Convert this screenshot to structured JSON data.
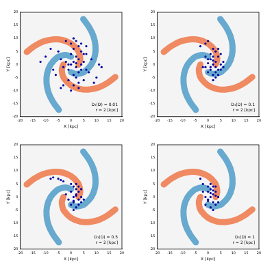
{
  "chart_data": [
    {
      "type": "scatter",
      "xlabel": "X [kpc]",
      "ylabel": "Y [kpc]",
      "xlim": [
        -20,
        20
      ],
      "ylim": [
        -20,
        20
      ],
      "xticks": [
        -20,
        -15,
        -10,
        -5,
        0,
        5,
        10,
        15,
        20
      ],
      "yticks": [
        -20,
        -15,
        -10,
        -5,
        0,
        5,
        10,
        15,
        20
      ],
      "grid": false,
      "annotations": [
        "D₁(D) = 0.01",
        "r = 2 [kpc]"
      ],
      "series": [
        {
          "type": "line",
          "color": "#ef8a62",
          "x": [
            3.0,
            3.6,
            3.4,
            2.7,
            0,
            -3.5,
            -7.2,
            -10.9,
            -14.3,
            -17.4
          ],
          "values": [
            0,
            1.8,
            3.7,
            5.4,
            8.0,
            9.4,
            9.6,
            8.8,
            7.1,
            4.8
          ]
        },
        {
          "type": "line",
          "color": "#ef8a62",
          "x": [
            -3.0,
            -3.6,
            -3.4,
            -2.7,
            0,
            3.5,
            7.2,
            10.9,
            14.3,
            17.4
          ],
          "values": [
            0,
            -1.8,
            -3.7,
            -5.4,
            -8.0,
            -9.4,
            -9.6,
            -8.8,
            -7.1,
            -4.8
          ]
        },
        {
          "type": "line",
          "color": "#67a9cf",
          "x": [
            0,
            -1.8,
            -3.7,
            -5.4,
            -8.0,
            -9.4,
            -9.6,
            -8.8,
            -7.1,
            -4.8
          ],
          "values": [
            3.0,
            3.6,
            3.4,
            2.7,
            0,
            -3.5,
            -7.2,
            -10.9,
            -14.3,
            -17.4
          ]
        },
        {
          "type": "line",
          "color": "#67a9cf",
          "x": [
            0,
            1.8,
            3.7,
            5.4,
            8.0,
            9.4,
            9.6,
            8.8,
            7.1,
            4.8
          ],
          "values": [
            -3.0,
            -3.6,
            -3.4,
            -2.7,
            0,
            3.5,
            7.2,
            10.9,
            14.3,
            17.4
          ]
        },
        {
          "type": "scatter",
          "color": "#00009f",
          "marker": "circle",
          "x": [
            0,
            1,
            2,
            3,
            4,
            -1,
            -2,
            2,
            3,
            1,
            0,
            5,
            6,
            -3,
            -4,
            4,
            2,
            1,
            -1,
            3,
            5,
            7,
            -5,
            -6,
            8,
            -8,
            10,
            12,
            -10,
            -12,
            2,
            4,
            6,
            0,
            -2,
            1,
            3,
            5,
            -3,
            2,
            -7,
            9,
            3,
            0,
            -4,
            6,
            11,
            1,
            4,
            -1
          ],
          "values": [
            0,
            1,
            -1,
            2,
            0,
            -2,
            1,
            3,
            -3,
            -4,
            4,
            1,
            -2,
            -1,
            2,
            5,
            -5,
            6,
            -6,
            7,
            4,
            -3,
            5,
            -4,
            2,
            6,
            -5,
            -1,
            3,
            1,
            9,
            8,
            7,
            8,
            9,
            -8,
            -7,
            -6,
            -8,
            0.5,
            -2,
            -7,
            -9,
            -10,
            -9,
            4,
            0,
            10,
            -2,
            0
          ]
        }
      ]
    },
    {
      "type": "scatter",
      "xlabel": "X [kpc]",
      "ylabel": "Y [kpc]",
      "xlim": [
        -20,
        20
      ],
      "ylim": [
        -20,
        20
      ],
      "xticks": [
        -20,
        -15,
        -10,
        -5,
        0,
        5,
        10,
        15,
        20
      ],
      "yticks": [
        -20,
        -15,
        -10,
        -5,
        0,
        5,
        10,
        15,
        20
      ],
      "grid": false,
      "annotations": [
        "D₁(D) = 0.1",
        "r = 2 [kpc]"
      ],
      "series": [
        {
          "type": "line",
          "color": "#ef8a62",
          "x": [
            3.0,
            3.6,
            3.4,
            2.7,
            0,
            -3.5,
            -7.2,
            -10.9,
            -14.3,
            -17.4
          ],
          "values": [
            0,
            1.8,
            3.7,
            5.4,
            8.0,
            9.4,
            9.6,
            8.8,
            7.1,
            4.8
          ]
        },
        {
          "type": "line",
          "color": "#ef8a62",
          "x": [
            -3.0,
            -3.6,
            -3.4,
            -2.7,
            0,
            3.5,
            7.2,
            10.9,
            14.3,
            17.4
          ],
          "values": [
            0,
            -1.8,
            -3.7,
            -5.4,
            -8.0,
            -9.4,
            -9.6,
            -8.8,
            -7.1,
            -4.8
          ]
        },
        {
          "type": "line",
          "color": "#67a9cf",
          "x": [
            0,
            -1.8,
            -3.7,
            -5.4,
            -8.0,
            -9.4,
            -9.6,
            -8.8,
            -7.1,
            -4.8
          ],
          "values": [
            3.0,
            3.6,
            3.4,
            2.7,
            0,
            -3.5,
            -7.2,
            -10.9,
            -14.3,
            -17.4
          ]
        },
        {
          "type": "line",
          "color": "#67a9cf",
          "x": [
            0,
            1.8,
            3.7,
            5.4,
            8.0,
            9.4,
            9.6,
            8.8,
            7.1,
            4.8
          ],
          "values": [
            -3.0,
            -3.6,
            -3.4,
            -2.7,
            0,
            3.5,
            7.2,
            10.9,
            14.3,
            17.4
          ]
        },
        {
          "type": "scatter",
          "color": "#00009f",
          "marker": "circle",
          "x": [
            2,
            3,
            1,
            4,
            0,
            2,
            3,
            5,
            1,
            -1,
            2,
            4,
            0,
            3,
            5,
            6,
            1,
            2,
            -1,
            3,
            4,
            2,
            0,
            1,
            5,
            3,
            -2,
            6,
            2,
            4,
            -1,
            0,
            -3
          ],
          "values": [
            0,
            1,
            -1,
            -2,
            2,
            3,
            -3,
            0,
            4,
            -1,
            -4,
            3,
            -3,
            5,
            -2,
            1,
            2,
            6,
            3,
            -5,
            -4,
            1.5,
            0.5,
            -2,
            4,
            -1,
            -1,
            -1,
            -6,
            6,
            8,
            9,
            7
          ]
        }
      ]
    },
    {
      "type": "scatter",
      "xlabel": "X [kpc]",
      "ylabel": "Y [kpc]",
      "xlim": [
        -20,
        20
      ],
      "ylim": [
        -20,
        20
      ],
      "xticks": [
        -20,
        -15,
        -10,
        -5,
        0,
        5,
        10,
        15,
        20
      ],
      "yticks": [
        -20,
        -15,
        -10,
        -5,
        0,
        5,
        10,
        15,
        20
      ],
      "grid": false,
      "annotations": [
        "D₁(D) = 0.5",
        "r = 2 [kpc]"
      ],
      "series": [
        {
          "type": "line",
          "color": "#ef8a62",
          "x": [
            3.0,
            3.6,
            3.4,
            2.7,
            0,
            -3.5,
            -7.2,
            -10.9,
            -14.3,
            -17.4
          ],
          "values": [
            0,
            1.8,
            3.7,
            5.4,
            8.0,
            9.4,
            9.6,
            8.8,
            7.1,
            4.8
          ]
        },
        {
          "type": "line",
          "color": "#ef8a62",
          "x": [
            -3.0,
            -3.6,
            -3.4,
            -2.7,
            0,
            3.5,
            7.2,
            10.9,
            14.3,
            17.4
          ],
          "values": [
            0,
            -1.8,
            -3.7,
            -5.4,
            -8.0,
            -9.4,
            -9.6,
            -8.8,
            -7.1,
            -4.8
          ]
        },
        {
          "type": "line",
          "color": "#67a9cf",
          "x": [
            0,
            -1.8,
            -3.7,
            -5.4,
            -8.0,
            -9.4,
            -9.6,
            -8.8,
            -7.1,
            -4.8
          ],
          "values": [
            3.0,
            3.6,
            3.4,
            2.7,
            0,
            -3.5,
            -7.2,
            -10.9,
            -14.3,
            -17.4
          ]
        },
        {
          "type": "line",
          "color": "#67a9cf",
          "x": [
            0,
            1.8,
            3.7,
            5.4,
            8.0,
            9.4,
            9.6,
            8.8,
            7.1,
            4.8
          ],
          "values": [
            -3.0,
            -3.6,
            -3.4,
            -2.7,
            0,
            3.5,
            7.2,
            10.9,
            14.3,
            17.4
          ]
        },
        {
          "type": "scatter",
          "color": "#00009f",
          "marker": "circle",
          "x": [
            1,
            2,
            3,
            0,
            4,
            1,
            2,
            -1,
            3,
            2,
            0,
            4,
            1,
            3,
            5,
            -2,
            2,
            1,
            0,
            3,
            -3,
            -5,
            -7,
            -8,
            -4,
            2,
            4,
            1
          ],
          "values": [
            0,
            1,
            -1,
            2,
            0,
            -2,
            3,
            -1,
            -3,
            -4,
            -3,
            3,
            4,
            2,
            -1,
            1,
            5,
            -5,
            5,
            4,
            6,
            7,
            7.5,
            7,
            6.5,
            0.5,
            -2,
            -1.5
          ]
        }
      ]
    },
    {
      "type": "scatter",
      "xlabel": "X [kpc]",
      "ylabel": "Y [kpc]",
      "xlim": [
        -20,
        20
      ],
      "ylim": [
        -20,
        20
      ],
      "xticks": [
        -20,
        -15,
        -10,
        -5,
        0,
        5,
        10,
        15,
        20
      ],
      "yticks": [
        -20,
        -15,
        -10,
        -5,
        0,
        5,
        10,
        15,
        20
      ],
      "grid": false,
      "annotations": [
        "D₁(D) = 1",
        "r = 2 [kpc]"
      ],
      "series": [
        {
          "type": "line",
          "color": "#ef8a62",
          "x": [
            3.0,
            3.6,
            3.4,
            2.7,
            0,
            -3.5,
            -7.2,
            -10.9,
            -14.3,
            -17.4
          ],
          "values": [
            0,
            1.8,
            3.7,
            5.4,
            8.0,
            9.4,
            9.6,
            8.8,
            7.1,
            4.8
          ]
        },
        {
          "type": "line",
          "color": "#ef8a62",
          "x": [
            -3.0,
            -3.6,
            -3.4,
            -2.7,
            0,
            3.5,
            7.2,
            10.9,
            14.3,
            17.4
          ],
          "values": [
            0,
            -1.8,
            -3.7,
            -5.4,
            -8.0,
            -9.4,
            -9.6,
            -8.8,
            -7.1,
            -4.8
          ]
        },
        {
          "type": "line",
          "color": "#67a9cf",
          "x": [
            0,
            -1.8,
            -3.7,
            -5.4,
            -8.0,
            -9.4,
            -9.6,
            -8.8,
            -7.1,
            -4.8
          ],
          "values": [
            3.0,
            3.6,
            3.4,
            2.7,
            0,
            -3.5,
            -7.2,
            -10.9,
            -14.3,
            -17.4
          ]
        },
        {
          "type": "line",
          "color": "#67a9cf",
          "x": [
            0,
            1.8,
            3.7,
            5.4,
            8.0,
            9.4,
            9.6,
            8.8,
            7.1,
            4.8
          ],
          "values": [
            -3.0,
            -3.6,
            -3.4,
            -2.7,
            0,
            3.5,
            7.2,
            10.9,
            14.3,
            17.4
          ]
        },
        {
          "type": "scatter",
          "color": "#00009f",
          "marker": "circle",
          "x": [
            1,
            2,
            0,
            3,
            -1,
            1,
            2,
            4,
            0,
            3,
            1,
            -2,
            2,
            -1,
            3,
            4,
            0,
            1,
            2,
            -2,
            -3,
            1,
            3,
            0,
            2
          ],
          "values": [
            0,
            1,
            -1,
            2,
            0,
            3,
            -2,
            0,
            4,
            -3,
            -4,
            2,
            4,
            -3,
            4,
            -2,
            2,
            5,
            -5,
            5,
            7,
            1.5,
            0.5,
            -1.5,
            2.5
          ]
        }
      ]
    }
  ]
}
